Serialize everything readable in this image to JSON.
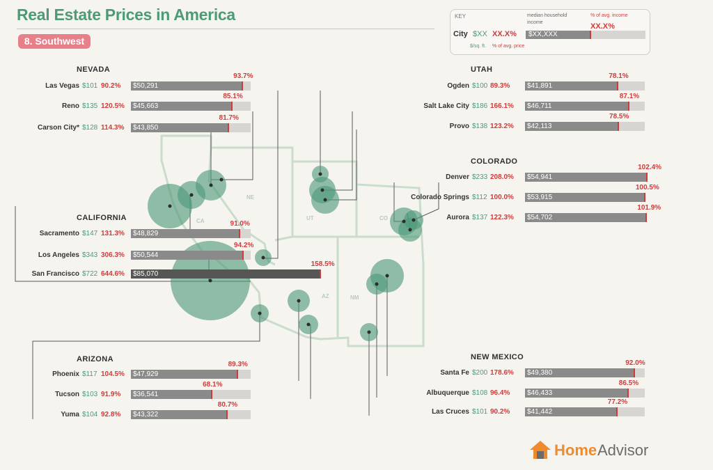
{
  "header": {
    "title": "Real Estate Prices in America",
    "region": "8. Southwest"
  },
  "key": {
    "label": "KEY",
    "city": "City",
    "price": "$XX",
    "ratio": "XX.X%",
    "price_caption": "$/sq. ft.",
    "ratio_caption": "% of avg. price",
    "income_caption": "median household income",
    "pct_caption": "% of avg. income",
    "bar_label": "XX.X%",
    "bar_value": "$XX,XXX"
  },
  "map": {
    "state_abbrs": [
      "CA",
      "NE",
      "UT",
      "CO",
      "AZ",
      "NM"
    ]
  },
  "colors": {
    "title_green": "#4d9a79",
    "price_green": "#4d9a79",
    "red": "#d23a3a",
    "bar_gray": "#8a8a8a",
    "bar_dark": "#565656",
    "track": "#d7d5d1",
    "badge": "#e8808a",
    "circle": "#4d9a79",
    "logo_orange": "#f08a2e"
  },
  "chart_data": {
    "type": "bar",
    "groups": [
      {
        "state": "NEVADA",
        "cities": [
          {
            "name": "Las Vegas",
            "price_per_sqft": "$101",
            "pct_avg_price": "90.2%",
            "income": "$50,291",
            "pct_avg_income": "93.7%",
            "pct_value": 93.7
          },
          {
            "name": "Reno",
            "price_per_sqft": "$135",
            "pct_avg_price": "120.5%",
            "income": "$45,663",
            "pct_avg_income": "85.1%",
            "pct_value": 85.1
          },
          {
            "name": "Carson City*",
            "price_per_sqft": "$128",
            "pct_avg_price": "114.3%",
            "income": "$43,850",
            "pct_avg_income": "81.7%",
            "pct_value": 81.7
          }
        ]
      },
      {
        "state": "CALIFORNIA",
        "cities": [
          {
            "name": "Sacramento",
            "price_per_sqft": "$147",
            "pct_avg_price": "131.3%",
            "income": "$48,829",
            "pct_avg_income": "91.0%",
            "pct_value": 91.0
          },
          {
            "name": "Los Angeles",
            "price_per_sqft": "$343",
            "pct_avg_price": "306.3%",
            "income": "$50,544",
            "pct_avg_income": "94.2%",
            "pct_value": 94.2
          },
          {
            "name": "San Francisco",
            "price_per_sqft": "$722",
            "pct_avg_price": "644.6%",
            "income": "$85,070",
            "pct_avg_income": "158.5%",
            "pct_value": 158.5
          }
        ]
      },
      {
        "state": "ARIZONA",
        "cities": [
          {
            "name": "Phoenix",
            "price_per_sqft": "$117",
            "pct_avg_price": "104.5%",
            "income": "$47,929",
            "pct_avg_income": "89.3%",
            "pct_value": 89.3
          },
          {
            "name": "Tucson",
            "price_per_sqft": "$103",
            "pct_avg_price": "91.9%",
            "income": "$36,541",
            "pct_avg_income": "68.1%",
            "pct_value": 68.1
          },
          {
            "name": "Yuma",
            "price_per_sqft": "$104",
            "pct_avg_price": "92.8%",
            "income": "$43,322",
            "pct_avg_income": "80.7%",
            "pct_value": 80.7
          }
        ]
      },
      {
        "state": "UTAH",
        "cities": [
          {
            "name": "Ogden",
            "price_per_sqft": "$100",
            "pct_avg_price": "89.3%",
            "income": "$41,891",
            "pct_avg_income": "78.1%",
            "pct_value": 78.1
          },
          {
            "name": "Salt Lake City",
            "price_per_sqft": "$186",
            "pct_avg_price": "166.1%",
            "income": "$46,711",
            "pct_avg_income": "87.1%",
            "pct_value": 87.1
          },
          {
            "name": "Provo",
            "price_per_sqft": "$138",
            "pct_avg_price": "123.2%",
            "income": "$42,113",
            "pct_avg_income": "78.5%",
            "pct_value": 78.5
          }
        ]
      },
      {
        "state": "COLORADO",
        "cities": [
          {
            "name": "Denver",
            "price_per_sqft": "$233",
            "pct_avg_price": "208.0%",
            "income": "$54,941",
            "pct_avg_income": "102.4%",
            "pct_value": 102.4
          },
          {
            "name": "Colorado Springs",
            "price_per_sqft": "$112",
            "pct_avg_price": "100.0%",
            "income": "$53,915",
            "pct_avg_income": "100.5%",
            "pct_value": 100.5
          },
          {
            "name": "Aurora",
            "price_per_sqft": "$137",
            "pct_avg_price": "122.3%",
            "income": "$54,702",
            "pct_avg_income": "101.9%",
            "pct_value": 101.9
          }
        ]
      },
      {
        "state": "NEW MEXICO",
        "cities": [
          {
            "name": "Santa Fe",
            "price_per_sqft": "$200",
            "pct_avg_price": "178.6%",
            "income": "$49,380",
            "pct_avg_income": "92.0%",
            "pct_value": 92.0
          },
          {
            "name": "Albuquerque",
            "price_per_sqft": "$108",
            "pct_avg_price": "96.4%",
            "income": "$46,433",
            "pct_avg_income": "86.5%",
            "pct_value": 86.5
          },
          {
            "name": "Las Cruces",
            "price_per_sqft": "$101",
            "pct_avg_price": "90.2%",
            "income": "$41,442",
            "pct_avg_income": "77.2%",
            "pct_value": 77.2
          }
        ]
      }
    ]
  },
  "logo": {
    "home": "Home",
    "advisor": "Advisor"
  }
}
